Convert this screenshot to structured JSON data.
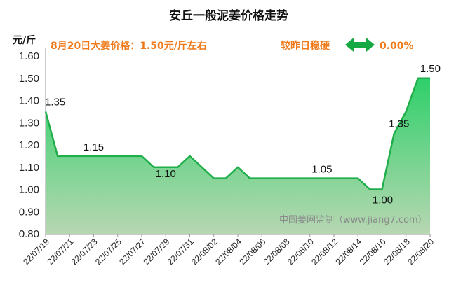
{
  "chart_data": {
    "type": "area",
    "title": "安丘一般泥姜价格走势",
    "ylabel": "元/斤",
    "ylim": [
      0.8,
      1.6
    ],
    "yticks": [
      "0.80",
      "0.90",
      "1.00",
      "1.10",
      "1.20",
      "1.30",
      "1.40",
      "1.50",
      "1.60"
    ],
    "xticks": [
      "22/07/19",
      "22/07/21",
      "22/07/23",
      "22/07/25",
      "22/07/27",
      "22/07/29",
      "22/07/31",
      "22/08/02",
      "22/08/04",
      "22/08/06",
      "22/08/08",
      "22/08/10",
      "22/08/12",
      "22/08/14",
      "22/08/16",
      "22/08/18",
      "22/08/20"
    ],
    "x": [
      "22/07/19",
      "22/07/20",
      "22/07/21",
      "22/07/22",
      "22/07/23",
      "22/07/24",
      "22/07/25",
      "22/07/26",
      "22/07/27",
      "22/07/28",
      "22/07/29",
      "22/07/30",
      "22/07/31",
      "22/08/01",
      "22/08/02",
      "22/08/03",
      "22/08/04",
      "22/08/05",
      "22/08/06",
      "22/08/07",
      "22/08/08",
      "22/08/09",
      "22/08/10",
      "22/08/11",
      "22/08/12",
      "22/08/13",
      "22/08/14",
      "22/08/15",
      "22/08/16",
      "22/08/17",
      "22/08/18",
      "22/08/19",
      "22/08/20"
    ],
    "values": [
      1.35,
      1.15,
      1.15,
      1.15,
      1.15,
      1.15,
      1.15,
      1.15,
      1.15,
      1.1,
      1.1,
      1.1,
      1.15,
      1.1,
      1.05,
      1.05,
      1.1,
      1.05,
      1.05,
      1.05,
      1.05,
      1.05,
      1.05,
      1.05,
      1.05,
      1.05,
      1.05,
      1.0,
      1.0,
      1.25,
      1.35,
      1.5,
      1.5
    ],
    "data_labels": [
      {
        "index": 0,
        "text": "1.35"
      },
      {
        "index": 4,
        "text": "1.15"
      },
      {
        "index": 10,
        "text": "1.10"
      },
      {
        "index": 23,
        "text": "1.05"
      },
      {
        "index": 28,
        "text": "1.00"
      },
      {
        "index": 30,
        "text": "1.35"
      },
      {
        "index": 32,
        "text": "1.50"
      }
    ],
    "line_color": "#1fae4a",
    "fill_top_color": "#2ed06a",
    "fill_bottom_color": "#b7d7b2"
  },
  "header": {
    "price_note": "8月20日大姜价格：1.50元/斤左右",
    "compare_label": "较昨日稳硬",
    "compare_value": "0.00%",
    "arrow_icon": "double-arrow-icon"
  },
  "watermark": "中国姜网监制（www.jiang7.com）"
}
